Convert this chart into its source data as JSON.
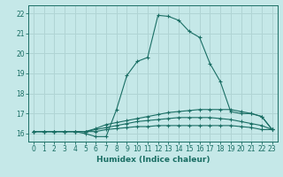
{
  "title": "",
  "xlabel": "Humidex (Indice chaleur)",
  "bg_color": "#c5e8e8",
  "line_color": "#1a6e64",
  "grid_color": "#b0d4d4",
  "xlim": [
    -0.5,
    23.5
  ],
  "ylim": [
    15.6,
    22.4
  ],
  "xticks": [
    0,
    1,
    2,
    3,
    4,
    5,
    6,
    7,
    8,
    9,
    10,
    11,
    12,
    13,
    14,
    15,
    16,
    17,
    18,
    19,
    20,
    21,
    22,
    23
  ],
  "yticks": [
    16,
    17,
    18,
    19,
    20,
    21,
    22
  ],
  "lines": [
    {
      "x": [
        0,
        1,
        2,
        3,
        4,
        5,
        6,
        7,
        8,
        9,
        10,
        11,
        12,
        13,
        14,
        15,
        16,
        17,
        18,
        19,
        20,
        21,
        22,
        23
      ],
      "y": [
        16.1,
        16.1,
        16.1,
        16.1,
        16.1,
        16.0,
        15.85,
        15.85,
        17.2,
        18.9,
        19.6,
        19.8,
        21.9,
        21.85,
        21.65,
        21.1,
        20.8,
        19.5,
        18.6,
        17.1,
        17.0,
        17.0,
        16.85,
        16.2
      ]
    },
    {
      "x": [
        0,
        1,
        2,
        3,
        4,
        5,
        6,
        7,
        8,
        9,
        10,
        11,
        12,
        13,
        14,
        15,
        16,
        17,
        18,
        19,
        20,
        21,
        22,
        23
      ],
      "y": [
        16.1,
        16.1,
        16.1,
        16.1,
        16.1,
        16.1,
        16.25,
        16.45,
        16.55,
        16.65,
        16.75,
        16.85,
        16.95,
        17.05,
        17.1,
        17.15,
        17.2,
        17.2,
        17.2,
        17.2,
        17.1,
        17.0,
        16.85,
        16.2
      ]
    },
    {
      "x": [
        0,
        1,
        2,
        3,
        4,
        5,
        6,
        7,
        8,
        9,
        10,
        11,
        12,
        13,
        14,
        15,
        16,
        17,
        18,
        19,
        20,
        21,
        22,
        23
      ],
      "y": [
        16.1,
        16.1,
        16.1,
        16.1,
        16.1,
        16.1,
        16.2,
        16.3,
        16.4,
        16.5,
        16.6,
        16.65,
        16.7,
        16.75,
        16.8,
        16.8,
        16.8,
        16.8,
        16.75,
        16.7,
        16.6,
        16.5,
        16.4,
        16.2
      ]
    },
    {
      "x": [
        0,
        1,
        2,
        3,
        4,
        5,
        6,
        7,
        8,
        9,
        10,
        11,
        12,
        13,
        14,
        15,
        16,
        17,
        18,
        19,
        20,
        21,
        22,
        23
      ],
      "y": [
        16.1,
        16.1,
        16.1,
        16.1,
        16.1,
        16.1,
        16.1,
        16.2,
        16.25,
        16.3,
        16.35,
        16.35,
        16.4,
        16.4,
        16.4,
        16.4,
        16.4,
        16.4,
        16.4,
        16.4,
        16.35,
        16.3,
        16.2,
        16.2
      ]
    }
  ]
}
